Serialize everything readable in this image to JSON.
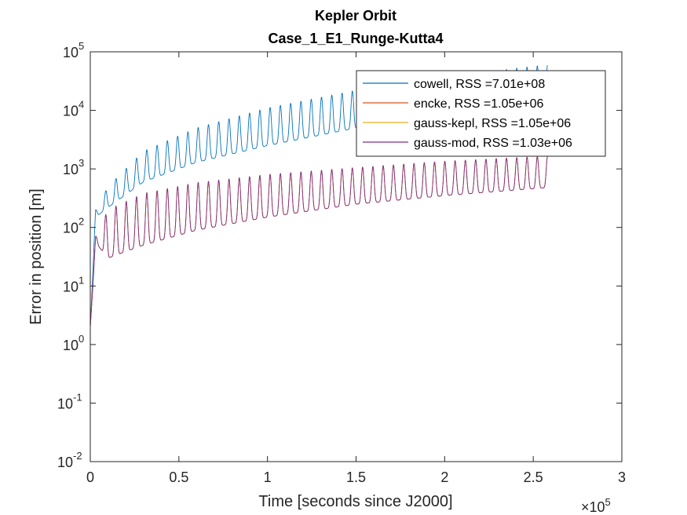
{
  "chart_data": {
    "type": "line",
    "title": "Kepler Orbit",
    "subtitle": "Case_1_E1_Runge-Kutta4",
    "xlabel": "Time [seconds since J2000]",
    "ylabel": "Error in position [m]",
    "x_exponent_label": "×10^5",
    "x_scale": 100000,
    "xlim": [
      0,
      300000
    ],
    "ylim": [
      0.01,
      100000
    ],
    "y_scale": "log",
    "x_ticks": [
      0,
      50000,
      100000,
      150000,
      200000,
      250000,
      300000
    ],
    "x_tick_labels": [
      "0",
      "0.5",
      "1",
      "1.5",
      "2",
      "2.5",
      "3"
    ],
    "y_ticks": [
      0.01,
      0.1,
      1,
      10,
      100,
      1000,
      10000,
      100000
    ],
    "y_tick_bases": [
      "10",
      "10",
      "10",
      "10",
      "10",
      "10",
      "10",
      "10"
    ],
    "y_tick_exponents": [
      "-2",
      "-1",
      "0",
      "1",
      "2",
      "3",
      "4",
      "5"
    ],
    "grid": false,
    "legend_position": "top-right",
    "orbit_period_s": 5800,
    "orbit_count": 44,
    "end_time_s": 258000,
    "series": [
      {
        "name": "cowell, RSS =7.01e+08",
        "color": "#0072BD",
        "peak_envelope": [
          [
            0,
            3
          ],
          [
            3000,
            200
          ],
          [
            10000,
            500
          ],
          [
            30000,
            2000
          ],
          [
            60000,
            5000
          ],
          [
            100000,
            11000
          ],
          [
            150000,
            22000
          ],
          [
            200000,
            38000
          ],
          [
            258000,
            60000
          ]
        ],
        "trough_envelope": [
          [
            0,
            2
          ],
          [
            3000,
            150
          ],
          [
            10000,
            220
          ],
          [
            30000,
            600
          ],
          [
            60000,
            1300
          ],
          [
            100000,
            2500
          ],
          [
            150000,
            5000
          ],
          [
            200000,
            7500
          ],
          [
            258000,
            10000
          ]
        ]
      },
      {
        "name": "encke, RSS =1.05e+06",
        "color": "#D95319",
        "peak_envelope": [
          [
            0,
            2
          ],
          [
            3000,
            70
          ],
          [
            10000,
            200
          ],
          [
            30000,
            380
          ],
          [
            60000,
            580
          ],
          [
            100000,
            800
          ],
          [
            150000,
            1050
          ],
          [
            200000,
            1350
          ],
          [
            258000,
            1650
          ]
        ],
        "trough_envelope": [
          [
            0,
            2
          ],
          [
            3000,
            55
          ],
          [
            10000,
            30
          ],
          [
            30000,
            50
          ],
          [
            60000,
            90
          ],
          [
            100000,
            150
          ],
          [
            150000,
            250
          ],
          [
            200000,
            350
          ],
          [
            258000,
            480
          ]
        ]
      },
      {
        "name": "gauss-kepl, RSS =1.05e+06",
        "color": "#EDB120",
        "peak_envelope": [
          [
            0,
            2
          ],
          [
            3000,
            70
          ],
          [
            10000,
            200
          ],
          [
            30000,
            380
          ],
          [
            60000,
            580
          ],
          [
            100000,
            800
          ],
          [
            150000,
            1050
          ],
          [
            200000,
            1350
          ],
          [
            258000,
            1650
          ]
        ],
        "trough_envelope": [
          [
            0,
            2
          ],
          [
            3000,
            55
          ],
          [
            10000,
            30
          ],
          [
            30000,
            50
          ],
          [
            60000,
            90
          ],
          [
            100000,
            150
          ],
          [
            150000,
            250
          ],
          [
            200000,
            350
          ],
          [
            258000,
            480
          ]
        ]
      },
      {
        "name": "gauss-mod, RSS =1.03e+06",
        "color": "#7E2F8E",
        "peak_envelope": [
          [
            0,
            2
          ],
          [
            3000,
            70
          ],
          [
            10000,
            200
          ],
          [
            30000,
            380
          ],
          [
            60000,
            580
          ],
          [
            100000,
            800
          ],
          [
            150000,
            1050
          ],
          [
            200000,
            1350
          ],
          [
            258000,
            1650
          ]
        ],
        "trough_envelope": [
          [
            0,
            2
          ],
          [
            3000,
            55
          ],
          [
            10000,
            30
          ],
          [
            30000,
            50
          ],
          [
            60000,
            90
          ],
          [
            100000,
            150
          ],
          [
            150000,
            250
          ],
          [
            200000,
            350
          ],
          [
            258000,
            480
          ]
        ]
      }
    ]
  }
}
